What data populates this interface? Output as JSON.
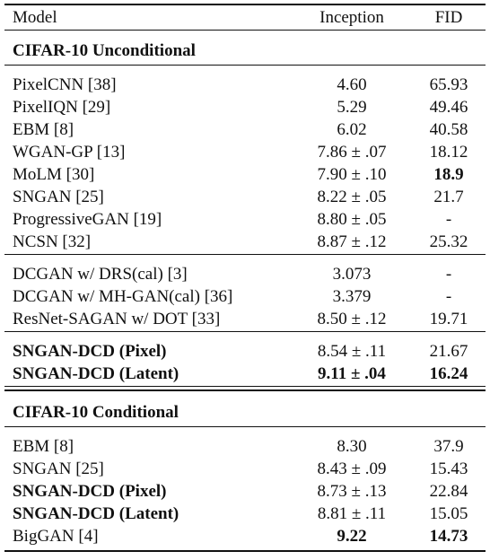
{
  "table": {
    "header": [
      "Model",
      "Inception",
      "FID"
    ],
    "sections": [
      {
        "title": "CIFAR-10 Unconditional",
        "groups": [
          [
            {
              "cells": [
                "PixelCNN [38]",
                "4.60",
                "65.93"
              ],
              "bold": []
            },
            {
              "cells": [
                "PixelIQN [29]",
                "5.29",
                "49.46"
              ],
              "bold": []
            },
            {
              "cells": [
                "EBM [8]",
                "6.02",
                "40.58"
              ],
              "bold": []
            },
            {
              "cells": [
                "WGAN-GP [13]",
                "7.86 ± .07",
                "18.12"
              ],
              "bold": []
            },
            {
              "cells": [
                "MoLM [30]",
                "7.90 ± .10",
                "18.9"
              ],
              "bold": [
                2
              ]
            },
            {
              "cells": [
                "SNGAN [25]",
                "8.22 ± .05",
                "21.7"
              ],
              "bold": []
            },
            {
              "cells": [
                "ProgressiveGAN [19]",
                "8.80 ± .05",
                "-"
              ],
              "bold": []
            },
            {
              "cells": [
                "NCSN [32]",
                "8.87 ± .12",
                "25.32"
              ],
              "bold": []
            }
          ],
          [
            {
              "cells": [
                "DCGAN w/ DRS(cal) [3]",
                "3.073",
                "-"
              ],
              "bold": []
            },
            {
              "cells": [
                "DCGAN w/ MH-GAN(cal) [36]",
                "3.379",
                "-"
              ],
              "bold": []
            },
            {
              "cells": [
                "ResNet-SAGAN w/ DOT [33]",
                "8.50 ± .12",
                "19.71"
              ],
              "bold": []
            }
          ],
          [
            {
              "cells": [
                "SNGAN-DCD (Pixel)",
                "8.54 ± .11",
                "21.67"
              ],
              "bold": [
                0
              ]
            },
            {
              "cells": [
                "SNGAN-DCD (Latent)",
                "9.11 ± .04",
                "16.24"
              ],
              "bold": [
                0,
                1,
                2
              ]
            }
          ]
        ]
      },
      {
        "title": "CIFAR-10 Conditional",
        "groups": [
          [
            {
              "cells": [
                "EBM [8]",
                "8.30",
                "37.9"
              ],
              "bold": []
            },
            {
              "cells": [
                "SNGAN [25]",
                "8.43 ± .09",
                "15.43"
              ],
              "bold": []
            },
            {
              "cells": [
                "SNGAN-DCD (Pixel)",
                "8.73 ± .13",
                "22.84"
              ],
              "bold": [
                0
              ]
            },
            {
              "cells": [
                "SNGAN-DCD (Latent)",
                "8.81 ± .11",
                "15.05"
              ],
              "bold": [
                0
              ]
            },
            {
              "cells": [
                "BigGAN [4]",
                "9.22",
                "14.73"
              ],
              "bold": [
                1,
                2
              ]
            }
          ]
        ]
      }
    ]
  }
}
